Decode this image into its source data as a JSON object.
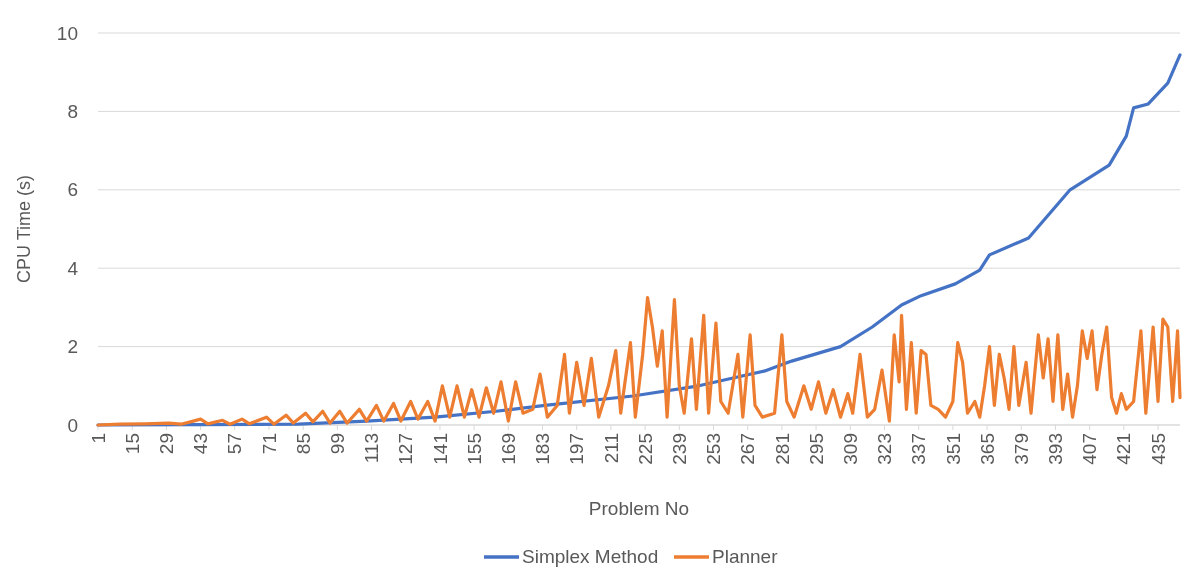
{
  "chart_data": {
    "type": "line",
    "xlabel": "Problem No",
    "ylabel": "CPU Time (s)",
    "xlim": [
      1,
      444
    ],
    "xticks": [
      1,
      15,
      29,
      43,
      57,
      71,
      85,
      99,
      113,
      127,
      141,
      155,
      169,
      183,
      197,
      211,
      225,
      239,
      253,
      267,
      281,
      295,
      309,
      323,
      337,
      351,
      365,
      379,
      393,
      407,
      421,
      435
    ],
    "ylim": [
      0,
      10
    ],
    "yticks": [
      0,
      2,
      4,
      6,
      8,
      10
    ],
    "grid": "y",
    "legend": "bottom",
    "line_style": "solid",
    "marker": "none",
    "series": [
      {
        "name": "Simplex Method",
        "color": "#4472c4",
        "x": [
          1,
          43,
          83,
          111,
          139,
          164,
          184,
          220,
          247,
          261,
          274,
          285,
          305,
          318,
          330,
          338,
          352,
          362,
          366,
          382,
          399,
          415,
          422,
          425,
          431,
          439,
          444
        ],
        "values": [
          0,
          0.01,
          0.02,
          0.1,
          0.2,
          0.35,
          0.5,
          0.74,
          1.0,
          1.2,
          1.38,
          1.63,
          2.0,
          2.5,
          3.06,
          3.3,
          3.6,
          3.95,
          4.34,
          4.77,
          6.0,
          6.63,
          7.37,
          8.09,
          8.19,
          8.72,
          9.44
        ]
      },
      {
        "name": "Planner",
        "color": "#ed7d31",
        "x": [
          1,
          10,
          20,
          30,
          35,
          40,
          43,
          46,
          52,
          55,
          60,
          63,
          70,
          73,
          78,
          81,
          86,
          89,
          93,
          96,
          100,
          103,
          108,
          111,
          115,
          118,
          122,
          125,
          129,
          132,
          136,
          139,
          142,
          145,
          148,
          151,
          154,
          157,
          160,
          163,
          166,
          169,
          172,
          175,
          179,
          182,
          185,
          189,
          192,
          194,
          197,
          200,
          203,
          206,
          210,
          213,
          215,
          219,
          221,
          224,
          226,
          228,
          230,
          232,
          234,
          237,
          239,
          241,
          244,
          246,
          249,
          251,
          254,
          256,
          259,
          263,
          265,
          268,
          270,
          273,
          278,
          281,
          283,
          286,
          290,
          293,
          296,
          299,
          302,
          305,
          308,
          310,
          313,
          316,
          319,
          322,
          325,
          327,
          329,
          330,
          332,
          334,
          336,
          338,
          340,
          342,
          345,
          348,
          351,
          353,
          355,
          357,
          360,
          362,
          364,
          366,
          368,
          370,
          372,
          374,
          376,
          378,
          381,
          383,
          386,
          388,
          390,
          392,
          394,
          396,
          398,
          400,
          402,
          404,
          406,
          408,
          410,
          412,
          414,
          416,
          418,
          420,
          422,
          425,
          428,
          430,
          433,
          435,
          437,
          439,
          441,
          443,
          444
        ],
        "values": [
          0,
          0.02,
          0.03,
          0.05,
          0.02,
          0.1,
          0.15,
          0.03,
          0.12,
          0.02,
          0.15,
          0.03,
          0.2,
          0.02,
          0.25,
          0.05,
          0.3,
          0.08,
          0.35,
          0.05,
          0.35,
          0.05,
          0.4,
          0.1,
          0.5,
          0.1,
          0.55,
          0.1,
          0.6,
          0.15,
          0.6,
          0.1,
          1.0,
          0.2,
          1.0,
          0.2,
          0.9,
          0.2,
          0.95,
          0.3,
          1.1,
          0.1,
          1.1,
          0.3,
          0.4,
          1.3,
          0.2,
          0.5,
          1.8,
          0.3,
          1.6,
          0.5,
          1.7,
          0.2,
          1.0,
          1.9,
          0.3,
          2.1,
          0.2,
          1.8,
          3.25,
          2.5,
          1.5,
          2.4,
          0.2,
          3.2,
          1.0,
          0.3,
          2.2,
          0.4,
          2.8,
          0.3,
          2.6,
          0.6,
          0.3,
          1.8,
          0.2,
          2.3,
          0.5,
          0.2,
          0.3,
          2.3,
          0.6,
          0.2,
          1.0,
          0.4,
          1.1,
          0.3,
          0.9,
          0.2,
          0.8,
          0.3,
          1.8,
          0.2,
          0.4,
          1.4,
          0.1,
          2.3,
          1.1,
          2.8,
          0.4,
          2.1,
          0.3,
          1.9,
          1.8,
          0.5,
          0.4,
          0.2,
          0.6,
          2.1,
          1.6,
          0.3,
          0.6,
          0.2,
          1.0,
          2.0,
          0.5,
          1.8,
          1.2,
          0.4,
          2.0,
          0.5,
          1.6,
          0.3,
          2.3,
          1.2,
          2.2,
          0.6,
          2.3,
          0.4,
          1.3,
          0.2,
          1.0,
          2.4,
          1.7,
          2.4,
          0.9,
          1.8,
          2.5,
          0.7,
          0.3,
          0.8,
          0.4,
          0.6,
          2.4,
          0.3,
          2.5,
          0.6,
          2.7,
          2.5,
          0.6,
          2.4,
          0.7
        ]
      }
    ]
  }
}
